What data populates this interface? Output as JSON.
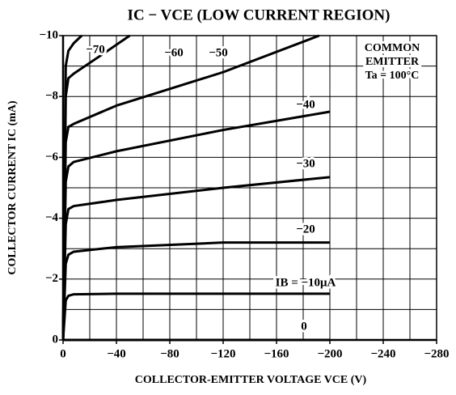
{
  "chart_data": {
    "type": "line",
    "title": "IC − VCE (LOW CURRENT REGION)",
    "xlabel": "COLLECTOR-EMITTER VOLTAGE  VCE  (V)",
    "ylabel": "COLLECTOR CURRENT  IC  (mA)",
    "annotation": [
      "COMMON",
      "EMITTER",
      "Ta = 100°C"
    ],
    "xlim": [
      0,
      -280
    ],
    "ylim": [
      0,
      -10
    ],
    "xticks": [
      0,
      {
        "value": -40,
        "label": "−40"
      },
      {
        "value": -80,
        "label": "−80"
      },
      {
        "value": -120,
        "label": "−120"
      },
      {
        "value": -160,
        "label": "−160"
      },
      {
        "value": -200,
        "label": "−200"
      },
      {
        "value": -240,
        "label": "−240"
      },
      {
        "value": -280,
        "label": "−280"
      }
    ],
    "yticks": [
      0,
      {
        "value": -2,
        "label": "−2"
      },
      {
        "value": -4,
        "label": "−4"
      },
      {
        "value": -6,
        "label": "−6"
      },
      {
        "value": -8,
        "label": "−8"
      },
      {
        "value": -10,
        "label": "−10"
      }
    ],
    "xgrid": [
      -20,
      -40,
      -60,
      -80,
      -100,
      -120,
      -140,
      -160,
      -180,
      -200,
      -220,
      -240,
      -260
    ],
    "ygrid": [
      -1,
      -2,
      -3,
      -4,
      -5,
      -6,
      -7,
      -8,
      -9
    ],
    "grid": true,
    "series": [
      {
        "name": "0",
        "color": "#000000",
        "x": [
          0,
          -200
        ],
        "values": [
          0,
          0
        ]
      },
      {
        "name": "IB = −10μA",
        "color": "#000000",
        "x": [
          0,
          -2,
          -4,
          -8,
          -40,
          -200
        ],
        "values": [
          0,
          -1.3,
          -1.45,
          -1.5,
          -1.52,
          -1.52
        ]
      },
      {
        "name": "−20",
        "color": "#000000",
        "x": [
          0,
          -2,
          -4,
          -8,
          -40,
          -120,
          -200
        ],
        "values": [
          0,
          -2.5,
          -2.8,
          -2.9,
          -3.05,
          -3.2,
          -3.2
        ]
      },
      {
        "name": "−30",
        "color": "#000000",
        "x": [
          0,
          -2,
          -4,
          -8,
          -40,
          -120,
          -200
        ],
        "values": [
          0,
          -3.8,
          -4.3,
          -4.4,
          -4.6,
          -5.0,
          -5.35
        ]
      },
      {
        "name": "−40",
        "color": "#000000",
        "x": [
          0,
          -2,
          -4,
          -8,
          -40,
          -120,
          -200
        ],
        "values": [
          0,
          -5.2,
          -5.7,
          -5.85,
          -6.2,
          -6.9,
          -7.5
        ]
      },
      {
        "name": "−50",
        "color": "#000000",
        "x": [
          0,
          -2,
          -4,
          -8,
          -40,
          -120,
          -192
        ],
        "values": [
          0,
          -6.5,
          -7.0,
          -7.1,
          -7.7,
          -8.8,
          -10
        ]
      },
      {
        "name": "−60",
        "color": "#000000",
        "x": [
          0,
          -2,
          -4,
          -8,
          -30,
          -50
        ],
        "values": [
          0,
          -8.0,
          -8.6,
          -8.75,
          -9.4,
          -10
        ]
      },
      {
        "name": "−70",
        "color": "#000000",
        "x": [
          0,
          -2,
          -4,
          -8,
          -14
        ],
        "values": [
          0,
          -9.0,
          -9.5,
          -9.75,
          -10
        ]
      }
    ]
  }
}
